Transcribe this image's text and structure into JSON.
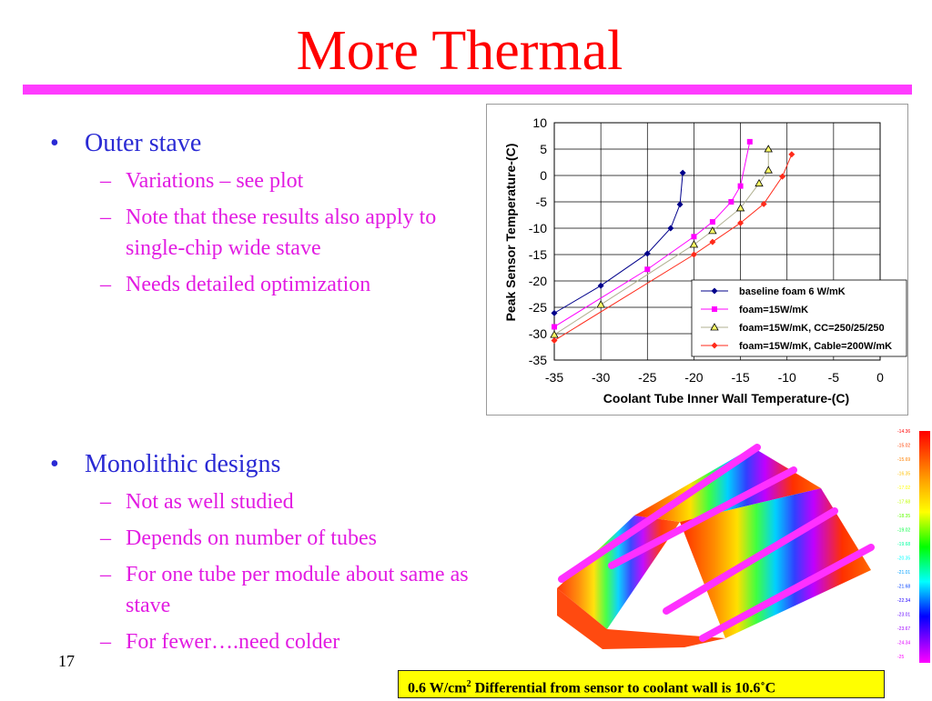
{
  "slide": {
    "title": "More Thermal",
    "number": "17"
  },
  "bullets": {
    "outer": {
      "marker": "•",
      "text": "Outer stave",
      "subs": [
        "Variations – see plot",
        "Note that these results also apply to single-chip wide stave",
        "Needs detailed optimization"
      ]
    },
    "mono": {
      "marker": "•",
      "text": "Monolithic designs",
      "subs": [
        "Not as well studied",
        "Depends on number of tubes",
        "For one tube per module about same as stave",
        "For fewer….need colder"
      ]
    },
    "dash": "–"
  },
  "caption": {
    "value": "0.6 W/cm",
    "sup": "2",
    "text": "Differential from sensor to coolant wall is 10.6˚C"
  },
  "colors": {
    "title": "#ff0000",
    "bar": "#ff3cff",
    "bullet": "#2a2ad4",
    "sub": "#e21ce2",
    "caption_bg": "#ffff00"
  },
  "thermal_scale": [
    "-14.36",
    "-15.02",
    "-15.69",
    "-16.35",
    "-17.02",
    "-17.68",
    "-18.35",
    "-19.02",
    "-19.68",
    "-20.35",
    "-21.01",
    "-21.68",
    "-22.34",
    "-23.01",
    "-23.67",
    "-24.34",
    "-25"
  ],
  "chart_data": {
    "type": "line",
    "xlabel": "Coolant Tube Inner Wall Temperature-(C)",
    "ylabel": "Peak Sensor Temperature-(C)",
    "xlim": [
      -35,
      0
    ],
    "ylim": [
      -35,
      10
    ],
    "xticks": [
      -35,
      -30,
      -25,
      -20,
      -15,
      -10,
      -5,
      0
    ],
    "yticks": [
      10,
      5,
      0,
      -5,
      -10,
      -15,
      -20,
      -25,
      -30,
      -35
    ],
    "grid": true,
    "legend": "bottom-right",
    "series": [
      {
        "name": "baseline foam 6 W/mK",
        "color": "#00008b",
        "marker": "diamond",
        "x": [
          -35,
          -30,
          -25,
          -22.5,
          -21.5,
          -21.2
        ],
        "y": [
          -26.1,
          -20.9,
          -14.8,
          -10.0,
          -5.5,
          0.5
        ]
      },
      {
        "name": "foam=15W/mK",
        "color": "#ff00ff",
        "marker": "square",
        "x": [
          -35,
          -25,
          -20,
          -18,
          -16,
          -15,
          -14
        ],
        "y": [
          -28.7,
          -17.8,
          -11.6,
          -8.8,
          -5.0,
          -2.0,
          6.4
        ]
      },
      {
        "name": "foam=15W/mK, CC=250/25/250",
        "color": "#ffff66",
        "marker": "triangle",
        "x": [
          -35,
          -30,
          -20,
          -18,
          -15,
          -13,
          -12,
          -12
        ],
        "y": [
          -30.2,
          -24.5,
          -13.1,
          -10.5,
          -6.2,
          -1.5,
          1.0,
          5.0
        ]
      },
      {
        "name": "foam=15W/mK, Cable=200W/mK",
        "color": "#ff2a1a",
        "marker": "diamond",
        "x": [
          -35,
          -20,
          -18,
          -15,
          -12.5,
          -10.5,
          -9.5
        ],
        "y": [
          -31.3,
          -15.0,
          -12.6,
          -9.0,
          -5.4,
          -0.2,
          4.0
        ]
      }
    ]
  }
}
